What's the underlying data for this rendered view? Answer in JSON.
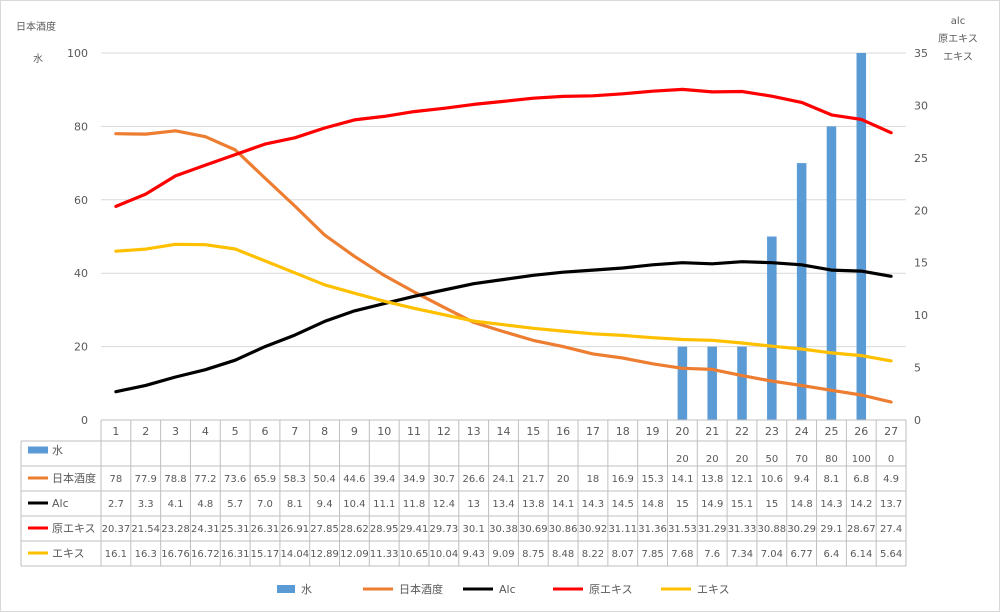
{
  "chart_data": {
    "type": "bar+line",
    "categories": [
      "1",
      "2",
      "3",
      "4",
      "5",
      "6",
      "7",
      "8",
      "9",
      "10",
      "11",
      "12",
      "13",
      "14",
      "15",
      "16",
      "17",
      "18",
      "19",
      "20",
      "21",
      "22",
      "23",
      "24",
      "25",
      "26",
      "27"
    ],
    "left_axis": {
      "title": "日本酒度",
      "subtitle": "水",
      "ylim": [
        0,
        100
      ],
      "ticks": [
        "0",
        "20",
        "40",
        "60",
        "80",
        "100"
      ]
    },
    "right_axis": {
      "title_lines": [
        "alc",
        "原エキス",
        "エキス"
      ],
      "ylim": [
        0,
        35
      ],
      "ticks": [
        "0",
        "5",
        "10",
        "15",
        "20",
        "25",
        "30",
        "35"
      ]
    },
    "grid": "horizontal",
    "legend_position": "bottom",
    "series": [
      {
        "name": "水",
        "kind": "bar",
        "axis": "left",
        "color": "#5b9bd5",
        "values": [
          null,
          null,
          null,
          null,
          null,
          null,
          null,
          null,
          null,
          null,
          null,
          null,
          null,
          null,
          null,
          null,
          null,
          null,
          null,
          20,
          20,
          20,
          50,
          70,
          80,
          100,
          0
        ],
        "labels": [
          "",
          "",
          "",
          "",
          "",
          "",
          "",
          "",
          "",
          "",
          "",
          "",
          "",
          "",
          "",
          "",
          "",
          "",
          "",
          "20",
          "20",
          "20",
          "50",
          "70",
          "80",
          "100",
          "0"
        ]
      },
      {
        "name": "日本酒度",
        "kind": "line",
        "axis": "left",
        "color": "#ed7d31",
        "values": [
          78,
          77.9,
          78.8,
          77.2,
          73.6,
          65.9,
          58.3,
          50.4,
          44.6,
          39.4,
          34.9,
          30.7,
          26.6,
          24.1,
          21.7,
          20,
          18,
          16.9,
          15.3,
          14.1,
          13.8,
          12.1,
          10.6,
          9.4,
          8.1,
          6.8,
          4.9
        ],
        "labels": [
          "78",
          "77.9",
          "78.8",
          "77.2",
          "73.6",
          "65.9",
          "58.3",
          "50.4",
          "44.6",
          "39.4",
          "34.9",
          "30.7",
          "26.6",
          "24.1",
          "21.7",
          "20",
          "18",
          "16.9",
          "15.3",
          "14.1",
          "13.8",
          "12.1",
          "10.6",
          "9.4",
          "8.1",
          "6.8",
          "4.9"
        ]
      },
      {
        "name": "Alc",
        "kind": "line",
        "axis": "right",
        "color": "#000000",
        "values": [
          2.7,
          3.3,
          4.1,
          4.8,
          5.7,
          7.0,
          8.1,
          9.4,
          10.4,
          11.1,
          11.8,
          12.4,
          13,
          13.4,
          13.8,
          14.1,
          14.3,
          14.5,
          14.8,
          15,
          14.9,
          15.1,
          15,
          14.8,
          14.3,
          14.2,
          13.7
        ],
        "labels": [
          "2.7",
          "3.3",
          "4.1",
          "4.8",
          "5.7",
          "7.0",
          "8.1",
          "9.4",
          "10.4",
          "11.1",
          "11.8",
          "12.4",
          "13",
          "13.4",
          "13.8",
          "14.1",
          "14.3",
          "14.5",
          "14.8",
          "15",
          "14.9",
          "15.1",
          "15",
          "14.8",
          "14.3",
          "14.2",
          "13.7"
        ]
      },
      {
        "name": "原エキス",
        "kind": "line",
        "axis": "right",
        "color": "#ff0000",
        "values": [
          20.37,
          21.54,
          23.28,
          24.31,
          25.31,
          26.31,
          26.91,
          27.85,
          28.62,
          28.95,
          29.41,
          29.73,
          30.1,
          30.38,
          30.69,
          30.86,
          30.92,
          31.11,
          31.36,
          31.53,
          31.29,
          31.33,
          30.88,
          30.29,
          29.1,
          28.67,
          27.4
        ],
        "labels": [
          "20.37",
          "21.54",
          "23.28",
          "24.31",
          "25.31",
          "26.31",
          "26.91",
          "27.85",
          "28.62",
          "28.95",
          "29.41",
          "29.73",
          "30.1",
          "30.38",
          "30.69",
          "30.86",
          "30.92",
          "31.11",
          "31.36",
          "31.53",
          "31.29",
          "31.33",
          "30.88",
          "30.29",
          "29.1",
          "28.67",
          "27.4"
        ]
      },
      {
        "name": "エキス",
        "kind": "line",
        "axis": "right",
        "color": "#ffc000",
        "values": [
          16.1,
          16.3,
          16.76,
          16.72,
          16.31,
          15.17,
          14.04,
          12.89,
          12.09,
          11.33,
          10.65,
          10.04,
          9.43,
          9.09,
          8.75,
          8.48,
          8.22,
          8.07,
          7.85,
          7.68,
          7.6,
          7.34,
          7.04,
          6.77,
          6.4,
          6.14,
          5.64
        ],
        "labels": [
          "16.1",
          "16.3",
          "16.76",
          "16.72",
          "16.31",
          "15.17",
          "14.04",
          "12.89",
          "12.09",
          "11.33",
          "10.65",
          "10.04",
          "9.43",
          "9.09",
          "8.75",
          "8.48",
          "8.22",
          "8.07",
          "7.85",
          "7.68",
          "7.6",
          "7.34",
          "7.04",
          "6.77",
          "6.4",
          "6.14",
          "5.64"
        ]
      }
    ]
  }
}
